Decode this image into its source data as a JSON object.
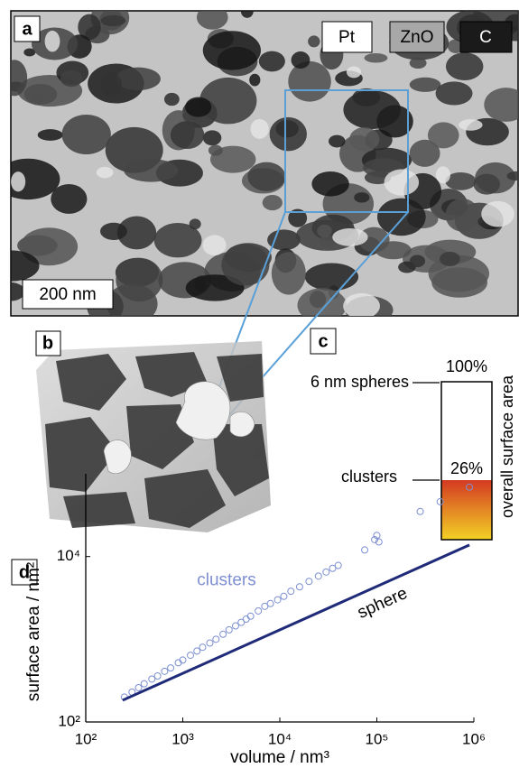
{
  "panels": {
    "a": {
      "label": "a",
      "legend": [
        "Pt",
        "ZnO",
        "C"
      ],
      "scale_bar": "200 nm"
    },
    "b": {
      "label": "b"
    },
    "c": {
      "label": "c",
      "top_label": "6 nm spheres",
      "top_value": "100%",
      "bottom_label": "clusters",
      "bottom_value": "26%",
      "axis_label": "overall surface area"
    }
  },
  "chart_data": {
    "type": "scatter",
    "panel_label": "d",
    "xlabel": "volume / nm³",
    "ylabel": "surface area / nm²",
    "xscale": "log",
    "yscale": "log",
    "xlim": [
      100,
      1000000
    ],
    "ylim": [
      100,
      100000
    ],
    "xticks": [
      {
        "value": 100,
        "label": "10²"
      },
      {
        "value": 1000,
        "label": "10³"
      },
      {
        "value": 10000,
        "label": "10⁴"
      },
      {
        "value": 100000,
        "label": "10⁵"
      },
      {
        "value": 1000000,
        "label": "10⁶"
      }
    ],
    "yticks": [
      {
        "value": 100,
        "label": "10²"
      },
      {
        "value": 10000,
        "label": "10⁴"
      }
    ],
    "series": [
      {
        "name": "clusters",
        "type": "scatter",
        "color": "#7d8fd2",
        "x": [
          250,
          300,
          350,
          400,
          480,
          550,
          650,
          750,
          900,
          1000,
          1200,
          1400,
          1600,
          1900,
          2200,
          2600,
          3000,
          3500,
          4000,
          4500,
          5000,
          6000,
          7000,
          8000,
          9500,
          11000,
          13000,
          16000,
          20000,
          25000,
          30000,
          35000,
          40000,
          75000,
          95000,
          100000,
          105000,
          280000,
          450000,
          900000
        ],
        "values": [
          200,
          230,
          260,
          290,
          330,
          360,
          410,
          450,
          520,
          560,
          640,
          720,
          800,
          900,
          1000,
          1150,
          1300,
          1450,
          1600,
          1750,
          1900,
          2200,
          2500,
          2700,
          3000,
          3300,
          3800,
          4300,
          5000,
          5800,
          6500,
          7200,
          7800,
          12000,
          16000,
          18000,
          15000,
          35000,
          46000,
          69000
        ]
      },
      {
        "name": "sphere",
        "type": "line",
        "color": "#1f2a78",
        "x": [
          240,
          900000
        ],
        "values": [
          183,
          13800
        ]
      }
    ]
  }
}
